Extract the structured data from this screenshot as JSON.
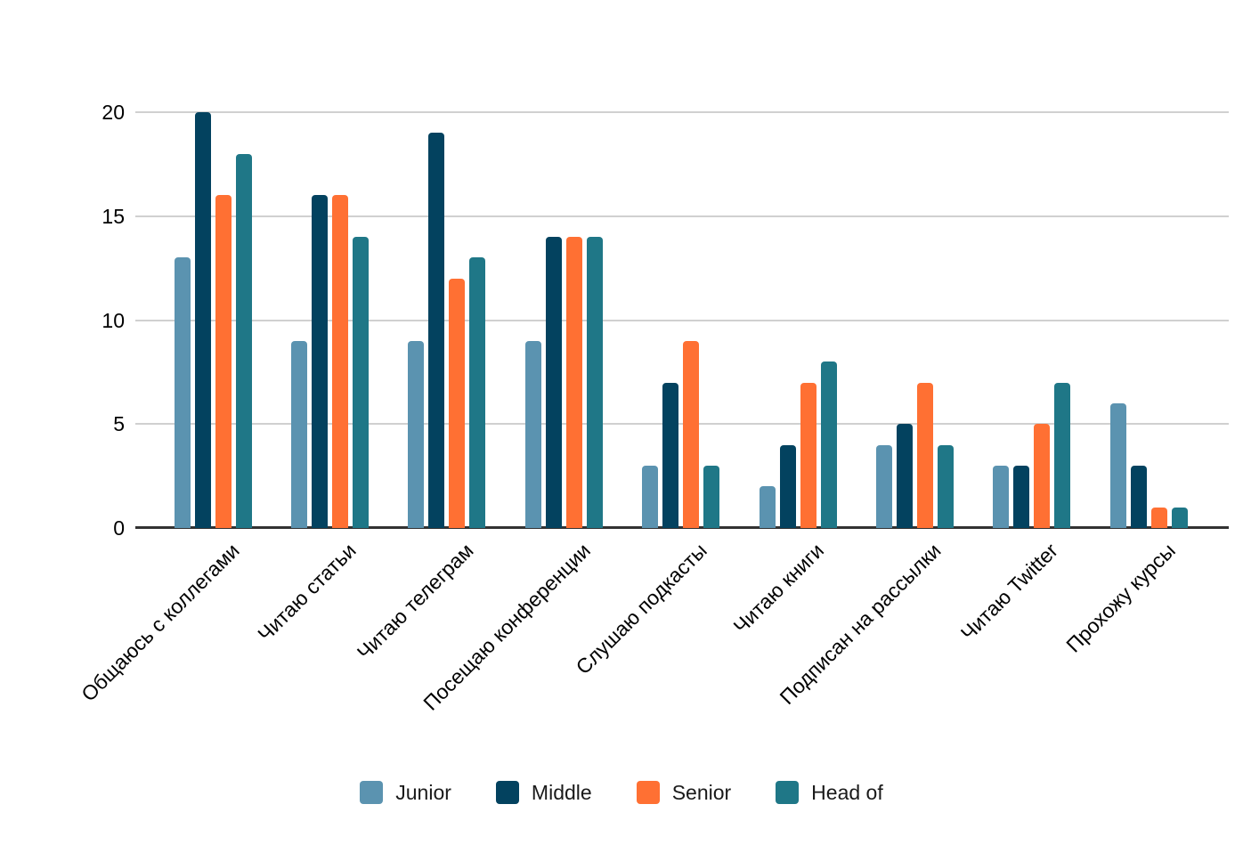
{
  "chart_data": {
    "type": "bar",
    "title": "",
    "xlabel": "",
    "ylabel": "",
    "categories": [
      "Общаюсь с коллегами",
      "Читаю статьи",
      "Читаю телеграм",
      "Посещаю конференции",
      "Слушаю подкасты",
      "Читаю книги",
      "Подписан на рассылки",
      "Читаю Twitter",
      "Прохожу курсы"
    ],
    "series": [
      {
        "name": "Junior",
        "color": "#5b93b0",
        "values": [
          13,
          9,
          9,
          9,
          3,
          2,
          4,
          3,
          6
        ]
      },
      {
        "name": "Middle",
        "color": "#03425f",
        "values": [
          20,
          16,
          19,
          14,
          7,
          4,
          5,
          3,
          3
        ]
      },
      {
        "name": "Senior",
        "color": "#ff7033",
        "values": [
          16,
          16,
          12,
          14,
          9,
          7,
          7,
          5,
          1
        ]
      },
      {
        "name": "Head of",
        "color": "#1f7787",
        "values": [
          18,
          14,
          13,
          14,
          3,
          8,
          4,
          7,
          1
        ]
      }
    ],
    "y_ticks": [
      0,
      5,
      10,
      15,
      20
    ],
    "ylim": [
      0,
      20
    ],
    "grid": true,
    "legend_position": "bottom"
  },
  "colors": {
    "background": "#ffffff",
    "gridline": "#d0d0d0",
    "axis_line": "#323232",
    "tick_text": "#000000",
    "category_text": "#000000",
    "legend_text": "#1a1a1a"
  }
}
